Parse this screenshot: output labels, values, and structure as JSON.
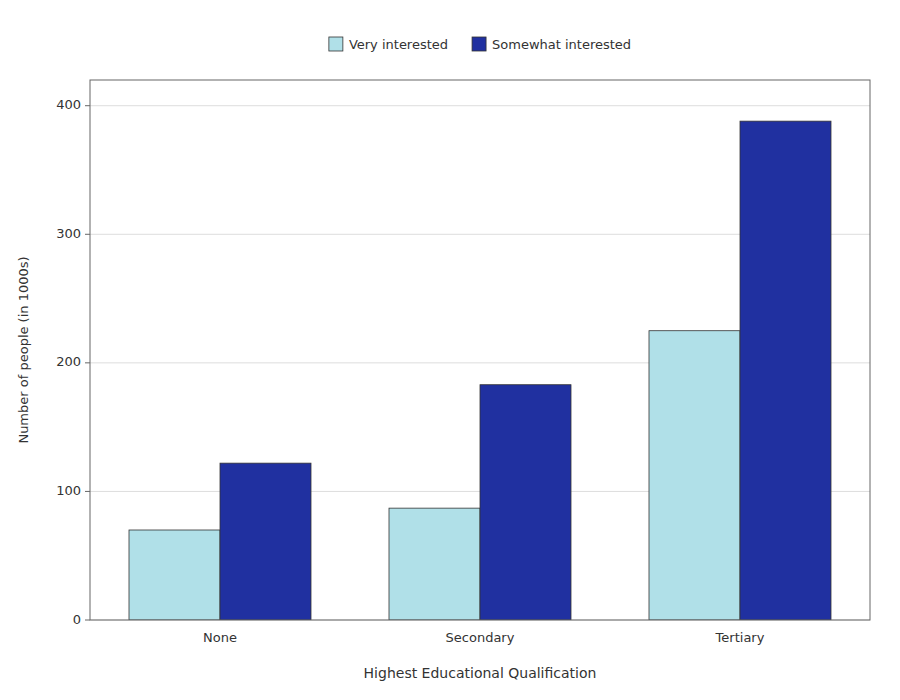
{
  "chart_data": {
    "type": "bar",
    "categories": [
      "None",
      "Secondary",
      "Tertiary"
    ],
    "series": [
      {
        "name": "Very interested",
        "color": "#B0E0E8",
        "values": [
          70,
          87,
          225
        ]
      },
      {
        "name": "Somewhat interested",
        "color": "#2030A0",
        "values": [
          122,
          183,
          388
        ]
      }
    ],
    "xlabel": "Highest Educational Qualification",
    "ylabel": "Number of people  (in 1000s)",
    "ylim": [
      0,
      420
    ],
    "yticks": [
      0,
      100,
      200,
      300,
      400
    ],
    "grid": true,
    "legend": "top"
  }
}
